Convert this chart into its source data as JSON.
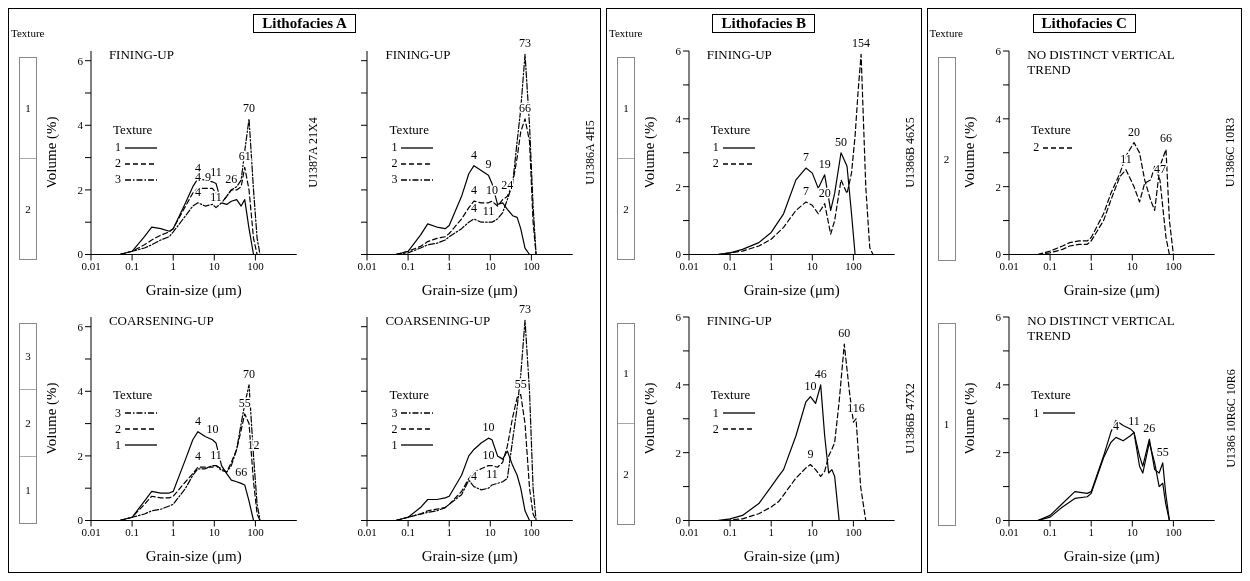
{
  "chart_data": [
    {
      "type": "line",
      "title": "Lithofacies A",
      "subtitle": "FINING-UP",
      "xlabel": "Grain-size (μm)",
      "ylabel": "Volume (%)",
      "y2label": "U1387A 21X4",
      "legend_title": "Texture",
      "legend": "left",
      "log": "x",
      "xlim": [
        0.01,
        1000
      ],
      "xticks": [
        0.01,
        0.1,
        1,
        10,
        100
      ],
      "ylim": [
        0,
        6.3
      ],
      "yticks": [
        0,
        {
          "value": 1,
          "label": null
        },
        2,
        {
          "value": 3,
          "label": null
        },
        4,
        {
          "value": 5,
          "label": null
        },
        6
      ],
      "x": [
        0.05,
        0.1,
        0.2,
        0.3,
        0.5,
        0.8,
        1,
        2,
        3,
        4,
        6,
        9,
        11,
        15,
        20,
        26,
        35,
        45,
        55,
        70,
        90,
        110,
        130,
        200,
        1000
      ],
      "series": [
        {
          "name": "1",
          "color": "#000000",
          "line_style": "solid",
          "values": [
            0,
            0.1,
            0.55,
            0.85,
            0.8,
            0.72,
            0.8,
            1.6,
            2.1,
            2.35,
            2.3,
            2.25,
            2.2,
            1.6,
            1.55,
            1.65,
            1.7,
            1.5,
            1.7,
            0.8,
            0,
            0,
            0,
            0,
            0
          ]
        },
        {
          "name": "2",
          "color": "#000000",
          "line_style": "dashed",
          "values": [
            0,
            0.1,
            0.3,
            0.45,
            0.6,
            0.7,
            0.8,
            1.5,
            1.9,
            2.05,
            2.05,
            2.05,
            1.9,
            1.6,
            1.8,
            2.0,
            2.0,
            2.1,
            2.7,
            2.0,
            0.5,
            0,
            0,
            0,
            0
          ]
        },
        {
          "name": "3",
          "color": "#000000",
          "line_style": "dotted",
          "values": [
            0,
            0.1,
            0.2,
            0.3,
            0.45,
            0.55,
            0.7,
            1.2,
            1.5,
            1.6,
            1.5,
            1.55,
            1.45,
            1.6,
            1.8,
            2.0,
            2.1,
            2.3,
            3.2,
            4.2,
            2.0,
            0.5,
            0,
            0,
            0
          ]
        }
      ],
      "annotations": [
        "Texture",
        "1",
        "2",
        {
          "text": "4",
          "x": 4,
          "y": 2.35
        },
        {
          "text": "11",
          "x": 11,
          "y": 2.2
        },
        {
          "text": "4",
          "x": 4,
          "y": 2.05
        },
        {
          "text": "9",
          "x": 7,
          "y": 2.05
        },
        {
          "text": "4",
          "x": 4,
          "y": 1.6
        },
        {
          "text": "11",
          "x": 11,
          "y": 1.45
        },
        {
          "text": "70",
          "x": 70,
          "y": 4.2
        },
        {
          "text": "61",
          "x": 55,
          "y": 2.7
        },
        {
          "text": "26",
          "x": 26,
          "y": 2.0
        }
      ]
    },
    {
      "type": "line",
      "subtitle": "FINING-UP",
      "xlabel": "Grain-size (μm)",
      "y2label": "U1386A 4H5",
      "legend_title": "Texture",
      "legend": "left",
      "log": "x",
      "tick_labels": "x",
      "xlim": [
        0.01,
        1000
      ],
      "xticks": [
        0.01,
        0.1,
        1,
        10,
        100
      ],
      "ylim": [
        0,
        6.3
      ],
      "yticks": [
        0,
        {
          "value": 1,
          "label": null
        },
        {
          "value": 2,
          "label": null
        },
        {
          "value": 3,
          "label": null
        },
        {
          "value": 4,
          "label": null
        },
        {
          "value": 5,
          "label": null
        },
        {
          "value": 6,
          "label": null
        }
      ],
      "x": [
        0.05,
        0.1,
        0.2,
        0.3,
        0.5,
        0.8,
        1,
        2,
        3,
        4,
        6,
        9,
        11,
        15,
        20,
        26,
        35,
        45,
        55,
        70,
        90,
        110,
        130,
        200,
        1000
      ],
      "series": [
        {
          "name": "1",
          "color": "#000000",
          "line_style": "solid",
          "values": [
            0,
            0.1,
            0.6,
            0.95,
            0.85,
            0.8,
            0.9,
            1.8,
            2.5,
            2.75,
            2.6,
            2.45,
            2.2,
            1.55,
            1.6,
            1.4,
            1.2,
            1.15,
            0.8,
            0.2,
            0,
            0,
            0,
            0,
            0
          ]
        },
        {
          "name": "2",
          "color": "#000000",
          "line_style": "dashed",
          "values": [
            0,
            0.1,
            0.25,
            0.4,
            0.5,
            0.55,
            0.65,
            1.1,
            1.45,
            1.65,
            1.6,
            1.6,
            1.65,
            1.5,
            1.7,
            1.8,
            2.2,
            3.0,
            3.8,
            4.2,
            3.5,
            1.0,
            0,
            0,
            0
          ]
        },
        {
          "name": "3",
          "color": "#000000",
          "line_style": "dotted",
          "values": [
            0,
            0.05,
            0.2,
            0.3,
            0.35,
            0.45,
            0.55,
            0.8,
            1.0,
            1.1,
            1.0,
            1.0,
            1.0,
            1.1,
            1.3,
            1.7,
            2.2,
            3.5,
            4.5,
            6.2,
            4.0,
            1.5,
            0,
            0,
            0
          ]
        }
      ],
      "annotations": [
        {
          "text": "4",
          "x": 4,
          "y": 2.75
        },
        {
          "text": "9",
          "x": 9,
          "y": 2.45
        },
        {
          "text": "4",
          "x": 4,
          "y": 1.65
        },
        {
          "text": "10",
          "x": 11,
          "y": 1.65
        },
        {
          "text": "4",
          "x": 4,
          "y": 1.1
        },
        {
          "text": "11",
          "x": 9,
          "y": 1.0
        },
        {
          "text": "24",
          "x": 26,
          "y": 1.8
        },
        {
          "text": "73",
          "x": 70,
          "y": 6.2
        },
        {
          "text": "66",
          "x": 70,
          "y": 4.2
        }
      ]
    },
    {
      "type": "line",
      "subtitle": "COARSENING-UP",
      "xlabel": "Grain-size (μm)",
      "ylabel": "Volume (%)",
      "legend_title": "Texture",
      "legend": "left",
      "log": "x",
      "xlim": [
        0.01,
        1000
      ],
      "xticks": [
        0.01,
        0.1,
        1,
        10,
        100
      ],
      "ylim": [
        0,
        6.3
      ],
      "yticks": [
        0,
        {
          "value": 1,
          "label": null
        },
        2,
        {
          "value": 3,
          "label": null
        },
        4,
        {
          "value": 5,
          "label": null
        },
        6
      ],
      "x": [
        0.05,
        0.1,
        0.2,
        0.3,
        0.5,
        0.8,
        1,
        2,
        3,
        4,
        6,
        9,
        11,
        15,
        20,
        26,
        35,
        45,
        55,
        70,
        90,
        110,
        130,
        200,
        1000
      ],
      "series": [
        {
          "name": "3",
          "color": "#000000",
          "line_style": "dotted",
          "values": [
            0,
            0.1,
            0.2,
            0.3,
            0.35,
            0.45,
            0.5,
            1.0,
            1.4,
            1.6,
            1.6,
            1.7,
            1.7,
            1.55,
            1.5,
            1.7,
            2.2,
            3.0,
            3.6,
            4.2,
            2.0,
            0.5,
            0,
            0,
            0
          ]
        },
        {
          "name": "2",
          "color": "#000000",
          "line_style": "dashed",
          "values": [
            0,
            0.1,
            0.5,
            0.75,
            0.7,
            0.7,
            0.75,
            1.2,
            1.45,
            1.65,
            1.65,
            1.65,
            1.7,
            1.6,
            1.5,
            1.8,
            2.2,
            2.8,
            3.3,
            3.0,
            1.2,
            0.2,
            0,
            0,
            0
          ]
        },
        {
          "name": "1",
          "color": "#000000",
          "line_style": "solid",
          "values": [
            0,
            0.1,
            0.6,
            0.9,
            0.85,
            0.85,
            0.9,
            1.9,
            2.5,
            2.75,
            2.6,
            2.5,
            2.4,
            1.7,
            1.45,
            1.25,
            1.2,
            1.15,
            1.1,
            0.6,
            0,
            0,
            0,
            0,
            0
          ]
        }
      ],
      "annotations": [
        "3",
        "2",
        "1",
        {
          "text": "4",
          "x": 4,
          "y": 2.75
        },
        {
          "text": "10",
          "x": 9,
          "y": 2.5
        },
        {
          "text": "4",
          "x": 4,
          "y": 1.65
        },
        {
          "text": "11",
          "x": 11,
          "y": 1.7
        },
        {
          "text": "70",
          "x": 70,
          "y": 4.2
        },
        {
          "text": "55",
          "x": 55,
          "y": 3.3
        },
        {
          "text": "12",
          "x": 90,
          "y": 2.0
        },
        {
          "text": "66",
          "x": 45,
          "y": 1.15
        }
      ]
    },
    {
      "type": "line",
      "subtitle": "COARSENING-UP",
      "xlabel": "Grain-size (μm)",
      "legend_title": "Texture",
      "legend": "left",
      "log": "x",
      "tick_labels": "x",
      "xlim": [
        0.01,
        1000
      ],
      "xticks": [
        0.01,
        0.1,
        1,
        10,
        100
      ],
      "ylim": [
        0,
        6.3
      ],
      "yticks": [
        0,
        {
          "value": 1,
          "label": null
        },
        {
          "value": 2,
          "label": null
        },
        {
          "value": 3,
          "label": null
        },
        {
          "value": 4,
          "label": null
        },
        {
          "value": 5,
          "label": null
        },
        {
          "value": 6,
          "label": null
        }
      ],
      "x": [
        0.05,
        0.1,
        0.2,
        0.3,
        0.5,
        0.8,
        1,
        2,
        3,
        4,
        6,
        9,
        11,
        15,
        20,
        26,
        35,
        45,
        55,
        70,
        90,
        110,
        130,
        200,
        1000
      ],
      "series": [
        {
          "name": "3",
          "color": "#000000",
          "line_style": "dotted",
          "values": [
            0,
            0.1,
            0.2,
            0.25,
            0.3,
            0.4,
            0.5,
            0.8,
            1.25,
            1.05,
            0.95,
            1.0,
            1.1,
            1.15,
            1.2,
            1.3,
            2.5,
            3.5,
            4.5,
            6.2,
            4.0,
            1.0,
            0,
            0,
            0
          ]
        },
        {
          "name": "2",
          "color": "#000000",
          "line_style": "dashed",
          "values": [
            0,
            0.1,
            0.2,
            0.3,
            0.35,
            0.4,
            0.5,
            0.9,
            1.3,
            1.5,
            1.6,
            1.7,
            1.7,
            1.65,
            1.8,
            2.3,
            3.2,
            3.8,
            3.9,
            3.0,
            1.0,
            0.2,
            0,
            0,
            0
          ]
        },
        {
          "name": "1",
          "color": "#000000",
          "line_style": "solid",
          "values": [
            0,
            0.1,
            0.4,
            0.65,
            0.65,
            0.7,
            0.75,
            1.4,
            2.0,
            2.2,
            2.4,
            2.55,
            2.5,
            2.0,
            1.9,
            2.15,
            1.7,
            1.4,
            1.0,
            0.3,
            0,
            0,
            0,
            0,
            0
          ]
        }
      ],
      "annotations": [
        {
          "text": "10",
          "x": 9,
          "y": 2.55
        },
        {
          "text": "10",
          "x": 9,
          "y": 1.7
        },
        {
          "text": "4",
          "x": 4,
          "y": 1.05
        },
        {
          "text": "11",
          "x": 11,
          "y": 1.1
        },
        {
          "text": "55",
          "x": 55,
          "y": 3.9
        },
        {
          "text": "73",
          "x": 70,
          "y": 6.2
        }
      ]
    },
    {
      "type": "line",
      "title": "Lithofacies B",
      "subtitle": "FINING-UP",
      "xlabel": "Grain-size (μm)",
      "ylabel": "Volume (%)",
      "y2label": "U1386B 46X5",
      "legend_title": "Texture",
      "legend": "left",
      "log": "x",
      "xlim": [
        0.01,
        1000
      ],
      "xticks": [
        0.01,
        0.1,
        1,
        10,
        100
      ],
      "ylim": [
        0,
        6
      ],
      "yticks": [
        0,
        {
          "value": 1,
          "label": null
        },
        2,
        {
          "value": 3,
          "label": null
        },
        4,
        {
          "value": 5,
          "label": null
        },
        6
      ],
      "x": [
        0.05,
        0.1,
        0.2,
        0.5,
        1,
        2,
        4,
        7,
        10,
        14,
        20,
        28,
        35,
        50,
        70,
        90,
        110,
        130,
        154,
        200,
        250,
        300,
        1000
      ],
      "series": [
        {
          "name": "1",
          "color": "#000000",
          "line_style": "solid",
          "values": [
            0,
            0.05,
            0.15,
            0.35,
            0.65,
            1.2,
            2.2,
            2.55,
            2.4,
            1.95,
            2.35,
            1.3,
            1.8,
            3.0,
            2.6,
            1.2,
            0,
            0,
            0,
            0,
            0,
            0,
            0
          ]
        },
        {
          "name": "2",
          "color": "#000000",
          "line_style": "dashed",
          "values": [
            0,
            0.05,
            0.1,
            0.25,
            0.45,
            0.8,
            1.3,
            1.55,
            1.45,
            1.2,
            1.5,
            0.6,
            1.0,
            2.2,
            1.8,
            2.4,
            3.5,
            4.8,
            5.9,
            2.0,
            0.2,
            0,
            0
          ]
        }
      ],
      "annotations": [
        "Texture",
        "1",
        "2",
        {
          "text": "7",
          "x": 7,
          "y": 2.55
        },
        {
          "text": "19",
          "x": 20,
          "y": 2.35
        },
        {
          "text": "50",
          "x": 50,
          "y": 3.0
        },
        {
          "text": "7",
          "x": 7,
          "y": 1.55
        },
        {
          "text": "20",
          "x": 20,
          "y": 1.5
        },
        {
          "text": "154",
          "x": 154,
          "y": 5.9
        }
      ]
    },
    {
      "type": "line",
      "subtitle": "FINING-UP",
      "xlabel": "Grain-size (μm)",
      "ylabel": "Volume (%)",
      "y2label": "U1386B 47X2",
      "legend_title": "Texture",
      "legend": "left",
      "log": "x",
      "xlim": [
        0.01,
        1000
      ],
      "xticks": [
        0.01,
        0.1,
        1,
        10,
        100
      ],
      "ylim": [
        0,
        6
      ],
      "yticks": [
        0,
        {
          "value": 1,
          "label": null
        },
        2,
        {
          "value": 3,
          "label": null
        },
        4,
        {
          "value": 5,
          "label": null
        },
        6
      ],
      "x": [
        0.05,
        0.1,
        0.2,
        0.5,
        1,
        1.5,
        2,
        4,
        7,
        9,
        12,
        16,
        20,
        25,
        30,
        35,
        45,
        60,
        80,
        100,
        116,
        150,
        200,
        1000
      ],
      "series": [
        {
          "name": "1",
          "color": "#000000",
          "line_style": "solid",
          "values": [
            0,
            0.05,
            0.15,
            0.5,
            1.0,
            1.3,
            1.5,
            2.5,
            3.5,
            3.65,
            3.45,
            4.0,
            2.5,
            1.4,
            1.5,
            1.3,
            0,
            0,
            0,
            0,
            0,
            0,
            0,
            0
          ]
        },
        {
          "name": "2",
          "color": "#000000",
          "line_style": "dashed",
          "values": [
            0,
            0.02,
            0.05,
            0.2,
            0.4,
            0.55,
            0.75,
            1.25,
            1.55,
            1.65,
            1.5,
            1.3,
            1.45,
            1.9,
            2.1,
            2.3,
            3.5,
            5.2,
            3.8,
            2.9,
            3.0,
            1.0,
            0,
            0
          ]
        }
      ],
      "annotations": [
        "1",
        "2",
        {
          "text": "10",
          "x": 9,
          "y": 3.65
        },
        {
          "text": "46",
          "x": 16,
          "y": 4.0
        },
        {
          "text": "9",
          "x": 9,
          "y": 1.65
        },
        {
          "text": "60",
          "x": 60,
          "y": 5.2
        },
        {
          "text": "116",
          "x": 116,
          "y": 3.0
        }
      ]
    },
    {
      "type": "line",
      "title": "Lithofacies C",
      "subtitle": "NO DISTINCT VERTICAL TREND",
      "xlabel": "Grain-size (μm)",
      "ylabel": "Volume (%)",
      "y2label": "U1386C 10R3",
      "legend_title": "Texture",
      "legend": "left",
      "log": "x",
      "xlim": [
        0.01,
        1000
      ],
      "xticks": [
        0.01,
        0.1,
        1,
        10,
        100
      ],
      "ylim": [
        0,
        6
      ],
      "yticks": [
        0,
        {
          "value": 1,
          "label": null
        },
        2,
        {
          "value": 3,
          "label": null
        },
        4,
        {
          "value": 5,
          "label": null
        },
        6
      ],
      "x": [
        0.05,
        0.1,
        0.2,
        0.3,
        0.5,
        0.8,
        1,
        2,
        3,
        5,
        7,
        11,
        15,
        20,
        28,
        35,
        47,
        66,
        80,
        100,
        1000
      ],
      "series": [
        {
          "name": "2",
          "color": "#000000",
          "line_style": "dashed",
          "values": [
            0,
            0.1,
            0.25,
            0.35,
            0.4,
            0.4,
            0.5,
            1.2,
            1.8,
            2.4,
            2.9,
            3.3,
            3.0,
            2.2,
            1.6,
            1.3,
            2.6,
            3.1,
            1.0,
            0,
            0
          ]
        },
        {
          "color": "#000000",
          "line_style": "dashed",
          "values": [
            0,
            0.05,
            0.15,
            0.25,
            0.3,
            0.3,
            0.4,
            1.0,
            1.6,
            2.3,
            2.5,
            2.0,
            1.55,
            2.1,
            2.2,
            2.6,
            2.2,
            0.5,
            0,
            0,
            0
          ]
        }
      ],
      "annotations": [
        "Texture",
        "2",
        {
          "text": "11",
          "x": 7,
          "y": 2.5
        },
        {
          "text": "20",
          "x": 11,
          "y": 3.3
        },
        {
          "text": "66",
          "x": 66,
          "y": 3.1
        },
        {
          "text": "47",
          "x": 47,
          "y": 2.2
        }
      ]
    },
    {
      "type": "line",
      "subtitle": "NO DISTINCT VERTICAL TREND",
      "xlabel": "Grain-size (μm)",
      "ylabel": "Volume (%)",
      "y2label": "U1386 10R6C 10R6",
      "legend_title": "Texture",
      "legend": "left",
      "log": "x",
      "xlim": [
        0.01,
        1000
      ],
      "xticks": [
        0.01,
        0.1,
        1,
        10,
        100
      ],
      "ylim": [
        0,
        6
      ],
      "yticks": [
        0,
        {
          "value": 1,
          "label": null
        },
        2,
        {
          "value": 3,
          "label": null
        },
        4,
        {
          "value": 5,
          "label": null
        },
        6
      ],
      "x": [
        0.05,
        0.1,
        0.2,
        0.4,
        0.8,
        1,
        2,
        3,
        4,
        6,
        9,
        11,
        15,
        18,
        26,
        35,
        45,
        55,
        65,
        80,
        1000
      ],
      "series": [
        {
          "name": "1",
          "color": "#000000",
          "line_style": "solid",
          "values": [
            0,
            0.15,
            0.5,
            0.85,
            0.8,
            0.85,
            1.9,
            2.6,
            2.95,
            2.8,
            2.7,
            2.6,
            1.9,
            1.6,
            2.4,
            1.5,
            1.4,
            1.7,
            0.8,
            0,
            0
          ]
        },
        {
          "color": "#000000",
          "line_style": "solid",
          "values": [
            0,
            0.1,
            0.4,
            0.65,
            0.7,
            0.8,
            1.85,
            2.3,
            2.45,
            2.35,
            2.5,
            2.6,
            1.6,
            1.4,
            2.3,
            1.7,
            1.0,
            1.1,
            0.5,
            0,
            0
          ]
        }
      ],
      "annotations": [
        "1",
        {
          "text": "4",
          "x": 4,
          "y": 2.45
        },
        {
          "text": "11",
          "x": 11,
          "y": 2.6
        },
        {
          "text": "26",
          "x": 26,
          "y": 2.4
        },
        {
          "text": "55",
          "x": 55,
          "y": 1.7
        }
      ]
    }
  ]
}
